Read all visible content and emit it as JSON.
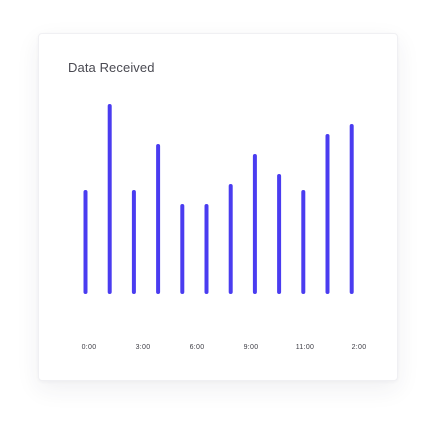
{
  "card": {
    "title": "Data Received"
  },
  "colors": {
    "bar": "#4a3cf0",
    "tick_text": "#3c3c44",
    "card_bg": "#ffffff"
  },
  "chart_data": {
    "type": "bar",
    "title": "Data Received",
    "xlabel": "",
    "ylabel": "",
    "grid": false,
    "legend": "none",
    "ylim": [
      0,
      100
    ],
    "tick_labels": [
      "0:00",
      "3:00",
      "6:00",
      "9:00",
      "11:00",
      "2:00"
    ],
    "values": [
      52,
      95,
      52,
      75,
      45,
      45,
      55,
      70,
      60,
      52,
      80,
      85
    ]
  }
}
